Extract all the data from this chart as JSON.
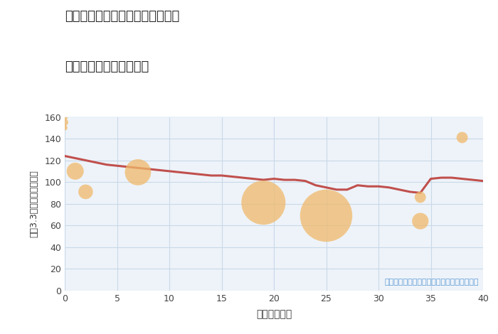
{
  "title_line1": "愛知県名古屋市千種区東千種台の",
  "title_line2": "築年数別中古戸建て価格",
  "xlabel": "築年数（年）",
  "ylabel": "坪（3.3㎡）単価（万円）",
  "annotation": "円の大きさは、取引のあった物件面積を示す",
  "background_color": "#ffffff",
  "plot_bg_color": "#eef3f9",
  "line_color": "#c0504d",
  "scatter_color": "#f0b96b",
  "scatter_alpha": 0.75,
  "grid_color": "#c8d8e8",
  "xlim": [
    0,
    40
  ],
  "ylim": [
    0,
    160
  ],
  "xticks": [
    0,
    5,
    10,
    15,
    20,
    25,
    30,
    35,
    40
  ],
  "yticks": [
    0,
    20,
    40,
    60,
    80,
    100,
    120,
    140,
    160
  ],
  "line_x": [
    0,
    1,
    2,
    3,
    4,
    5,
    6,
    7,
    8,
    9,
    10,
    11,
    12,
    13,
    14,
    15,
    16,
    17,
    18,
    19,
    20,
    21,
    22,
    23,
    24,
    25,
    26,
    27,
    28,
    29,
    30,
    31,
    32,
    33,
    34,
    35,
    36,
    37,
    38,
    39,
    40
  ],
  "line_y": [
    124,
    122,
    120,
    118,
    116,
    115,
    114,
    113,
    112,
    111,
    110,
    109,
    108,
    107,
    106,
    106,
    105,
    104,
    103,
    102,
    103,
    102,
    102,
    101,
    97,
    95,
    93,
    93,
    97,
    96,
    96,
    95,
    93,
    91,
    90,
    103,
    104,
    104,
    103,
    102,
    101
  ],
  "scatter_x": [
    0,
    0,
    0,
    1,
    2,
    7,
    19,
    25,
    34,
    34,
    38
  ],
  "scatter_y": [
    150,
    155,
    160,
    110,
    91,
    109,
    81,
    69,
    86,
    64,
    141
  ],
  "scatter_size": [
    30,
    50,
    40,
    300,
    220,
    700,
    2000,
    2800,
    130,
    280,
    130
  ]
}
